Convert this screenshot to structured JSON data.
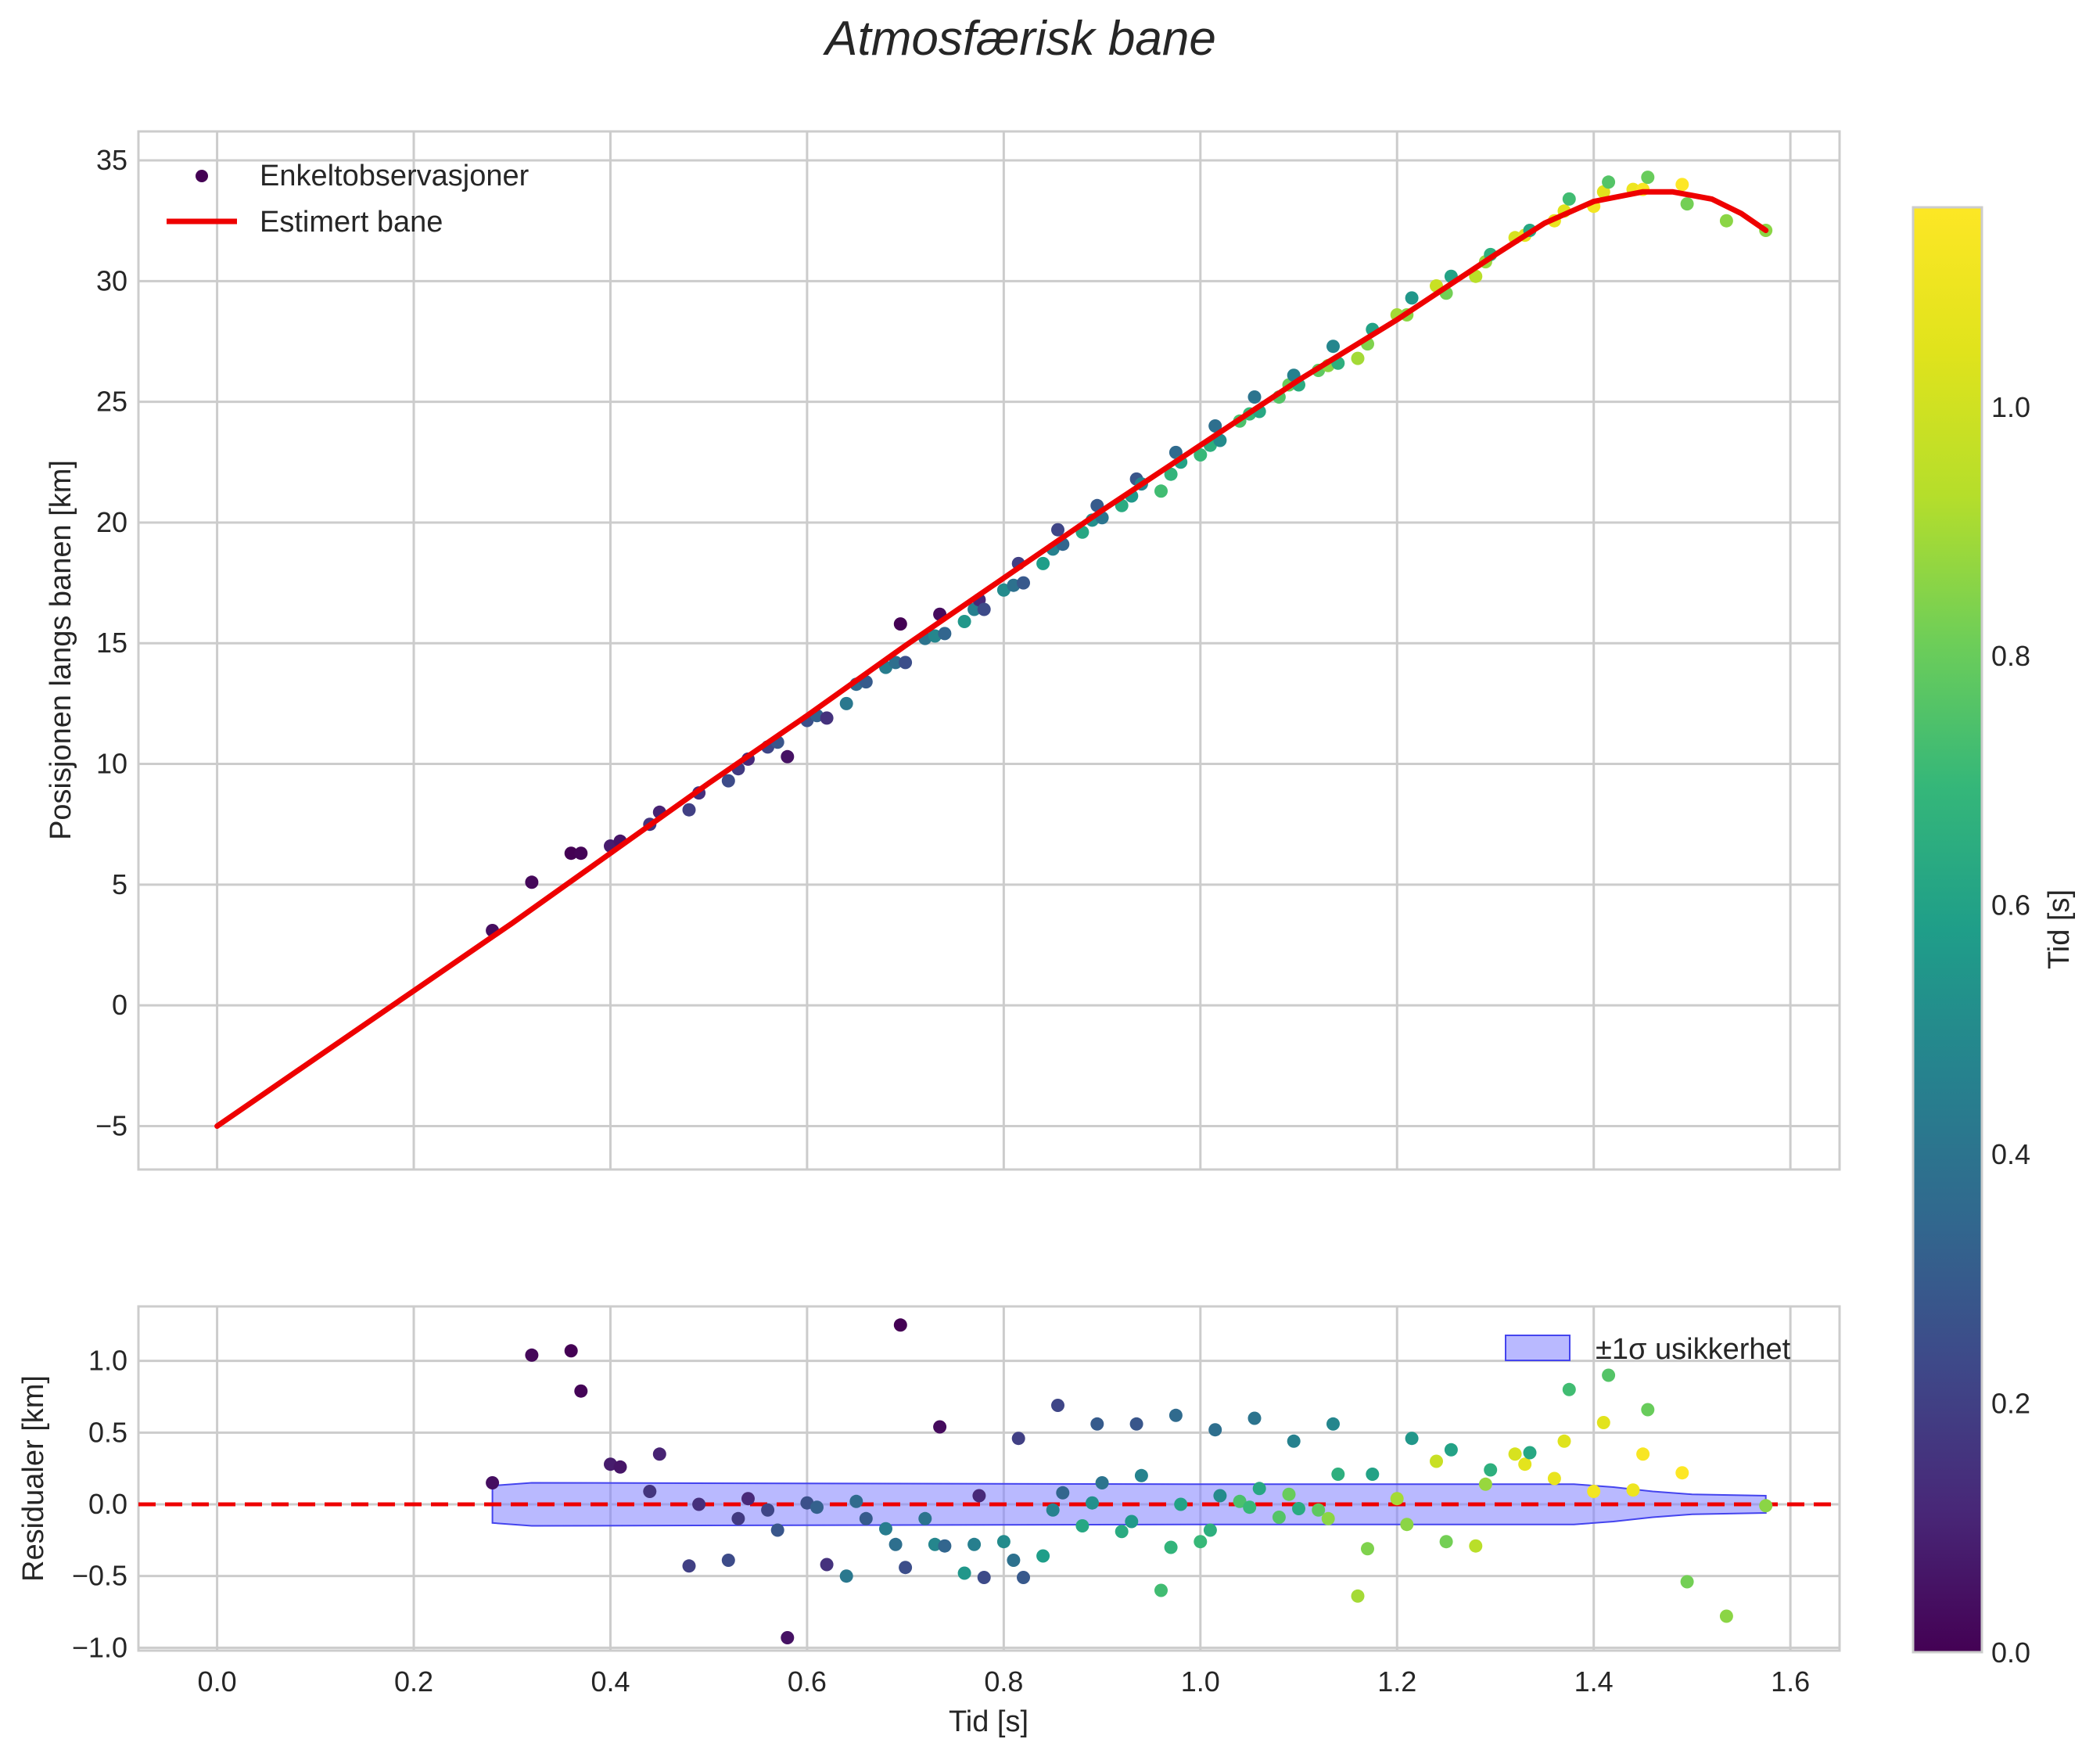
{
  "colors": {
    "fit_line": "#ee0000",
    "zero_line": "#ee0000",
    "band_fill": "#8080ff",
    "band_stroke": "#4444ee",
    "grid": "#cccccc",
    "spine": "#cccccc"
  },
  "chart_data": [
    {
      "type": "scatter",
      "title": "Atmosfærisk bane",
      "xlabel": "",
      "ylabel": "Posisjonen langs banen [km]",
      "xlim": [
        -0.08,
        1.65
      ],
      "ylim": [
        -6.8,
        36.2
      ],
      "xticks": [
        0.0,
        0.2,
        0.4,
        0.6,
        0.8,
        1.0,
        1.2,
        1.4,
        1.6
      ],
      "yticks": [
        -5,
        0,
        5,
        10,
        15,
        20,
        25,
        30,
        35
      ],
      "ytick_labels": [
        "−5",
        "0",
        "5",
        "10",
        "15",
        "20",
        "25",
        "30",
        "35"
      ],
      "grid": true,
      "legend_position": "upper-left",
      "legend": {
        "points_label": "Enkeltobservasjoner",
        "line_label": "Estimert bane"
      },
      "fit_line": {
        "name": "Estimert bane",
        "x": [
          0.0,
          0.1,
          0.2,
          0.3,
          0.4,
          0.5,
          0.6,
          0.7,
          0.8,
          0.9,
          1.0,
          1.1,
          1.2,
          1.3,
          1.35,
          1.4,
          1.45,
          1.48,
          1.52,
          1.55,
          1.575
        ],
        "y": [
          -5.0,
          -2.2,
          0.6,
          3.4,
          6.3,
          9.2,
          12.0,
          14.9,
          17.7,
          20.5,
          23.2,
          25.9,
          28.4,
          31.1,
          32.4,
          33.3,
          33.7,
          33.7,
          33.4,
          32.8,
          32.1
        ]
      },
      "points": {
        "name": "Enkeltobservasjoner",
        "x": [
          0.28,
          0.32,
          0.36,
          0.37,
          0.4,
          0.41,
          0.44,
          0.45,
          0.48,
          0.49,
          0.52,
          0.53,
          0.54,
          0.56,
          0.57,
          0.58,
          0.6,
          0.61,
          0.62,
          0.64,
          0.65,
          0.66,
          0.68,
          0.69,
          0.695,
          0.7,
          0.72,
          0.73,
          0.735,
          0.74,
          0.76,
          0.77,
          0.775,
          0.78,
          0.8,
          0.81,
          0.815,
          0.82,
          0.84,
          0.85,
          0.855,
          0.86,
          0.88,
          0.89,
          0.895,
          0.9,
          0.92,
          0.93,
          0.935,
          0.94,
          0.96,
          0.97,
          0.975,
          0.98,
          1.0,
          1.01,
          1.015,
          1.02,
          1.04,
          1.05,
          1.055,
          1.06,
          1.08,
          1.09,
          1.095,
          1.1,
          1.12,
          1.13,
          1.135,
          1.14,
          1.16,
          1.17,
          1.175,
          1.2,
          1.21,
          1.215,
          1.24,
          1.25,
          1.255,
          1.28,
          1.29,
          1.295,
          1.32,
          1.33,
          1.335,
          1.36,
          1.37,
          1.375,
          1.4,
          1.41,
          1.415,
          1.44,
          1.45,
          1.455,
          1.49,
          1.495,
          1.535,
          1.575
        ],
        "y": [
          3.1,
          5.1,
          6.3,
          6.3,
          6.6,
          6.8,
          7.5,
          8.0,
          8.1,
          8.8,
          9.3,
          9.8,
          10.2,
          10.7,
          10.9,
          10.3,
          11.8,
          12.0,
          11.9,
          12.5,
          13.3,
          13.4,
          14.0,
          14.2,
          15.8,
          14.2,
          15.2,
          15.3,
          16.2,
          15.4,
          15.9,
          16.4,
          16.8,
          16.4,
          17.2,
          17.4,
          18.3,
          17.5,
          18.3,
          18.9,
          19.7,
          19.1,
          19.6,
          20.1,
          20.7,
          20.2,
          20.7,
          21.1,
          21.8,
          21.6,
          21.3,
          22.0,
          22.9,
          22.5,
          22.8,
          23.2,
          24.0,
          23.4,
          24.2,
          24.5,
          25.2,
          24.6,
          25.2,
          25.7,
          26.1,
          25.7,
          26.3,
          26.5,
          27.3,
          26.6,
          26.8,
          27.4,
          28.0,
          28.6,
          28.6,
          29.3,
          29.8,
          29.5,
          30.2,
          30.2,
          30.8,
          31.1,
          31.8,
          31.9,
          32.1,
          32.5,
          32.9,
          33.4,
          33.1,
          33.7,
          34.1,
          33.8,
          33.8,
          34.3,
          34.0,
          33.2,
          32.5,
          32.1
        ],
        "color_values": [
          0.04,
          0.02,
          0.0,
          0.01,
          0.08,
          0.06,
          0.16,
          0.1,
          0.2,
          0.14,
          0.24,
          0.18,
          0.12,
          0.22,
          0.28,
          0.05,
          0.26,
          0.32,
          0.15,
          0.42,
          0.36,
          0.3,
          0.44,
          0.38,
          0.0,
          0.25,
          0.4,
          0.48,
          0.03,
          0.34,
          0.55,
          0.45,
          0.12,
          0.24,
          0.5,
          0.39,
          0.2,
          0.29,
          0.58,
          0.46,
          0.22,
          0.34,
          0.62,
          0.52,
          0.3,
          0.4,
          0.64,
          0.56,
          0.28,
          0.47,
          0.72,
          0.68,
          0.36,
          0.6,
          0.7,
          0.66,
          0.38,
          0.5,
          0.74,
          0.7,
          0.4,
          0.62,
          0.76,
          0.8,
          0.46,
          0.64,
          0.78,
          0.86,
          0.48,
          0.66,
          0.9,
          0.84,
          0.6,
          0.9,
          0.86,
          0.55,
          0.98,
          0.82,
          0.6,
          0.94,
          0.88,
          0.66,
          1.02,
          1.06,
          0.62,
          1.08,
          1.04,
          0.72,
          1.12,
          1.05,
          0.76,
          1.1,
          1.14,
          0.8,
          1.16,
          0.82,
          0.86,
          0.86
        ]
      },
      "colorbar": {
        "label": "Tid [s]",
        "vmin": 0.0,
        "vmax": 1.16,
        "ticks": [
          0.0,
          0.2,
          0.4,
          0.6,
          0.8,
          1.0
        ],
        "tick_labels": [
          "0.0",
          "0.2",
          "0.4",
          "0.6",
          "0.8",
          "1.0"
        ],
        "colormap": "viridis"
      }
    },
    {
      "type": "scatter",
      "xlabel": "Tid [s]",
      "ylabel": "Residualer [km]",
      "xlim": [
        -0.08,
        1.65
      ],
      "ylim": [
        -1.02,
        1.38
      ],
      "xticks": [
        0.0,
        0.2,
        0.4,
        0.6,
        0.8,
        1.0,
        1.2,
        1.4,
        1.6
      ],
      "xtick_labels": [
        "0.0",
        "0.2",
        "0.4",
        "0.6",
        "0.8",
        "1.0",
        "1.2",
        "1.4",
        "1.6"
      ],
      "yticks": [
        -1.0,
        -0.5,
        0.0,
        0.5,
        1.0
      ],
      "ytick_labels": [
        "−1.0",
        "−0.5",
        "0.0",
        "0.5",
        "1.0"
      ],
      "grid": true,
      "legend_position": "upper-right",
      "legend": {
        "band_label": "±1σ usikkerhet"
      },
      "zero_line": 0.0,
      "band": {
        "name": "±1σ usikkerhet",
        "x": [
          0.28,
          0.32,
          1.0,
          1.38,
          1.42,
          1.46,
          1.5,
          1.575
        ],
        "upper": [
          0.13,
          0.15,
          0.14,
          0.14,
          0.12,
          0.09,
          0.07,
          0.06
        ],
        "lower": [
          -0.13,
          -0.15,
          -0.14,
          -0.14,
          -0.12,
          -0.09,
          -0.07,
          -0.06
        ]
      },
      "points": {
        "x": [
          0.28,
          0.32,
          0.36,
          0.37,
          0.4,
          0.41,
          0.44,
          0.45,
          0.48,
          0.49,
          0.52,
          0.53,
          0.54,
          0.56,
          0.57,
          0.58,
          0.6,
          0.61,
          0.62,
          0.64,
          0.65,
          0.66,
          0.68,
          0.69,
          0.695,
          0.7,
          0.72,
          0.73,
          0.735,
          0.74,
          0.76,
          0.77,
          0.775,
          0.78,
          0.8,
          0.81,
          0.815,
          0.82,
          0.84,
          0.85,
          0.855,
          0.86,
          0.88,
          0.89,
          0.895,
          0.9,
          0.92,
          0.93,
          0.935,
          0.94,
          0.96,
          0.97,
          0.975,
          0.98,
          1.0,
          1.01,
          1.015,
          1.02,
          1.04,
          1.05,
          1.055,
          1.06,
          1.08,
          1.09,
          1.095,
          1.1,
          1.12,
          1.13,
          1.135,
          1.14,
          1.16,
          1.17,
          1.175,
          1.2,
          1.21,
          1.215,
          1.24,
          1.25,
          1.255,
          1.28,
          1.29,
          1.295,
          1.32,
          1.33,
          1.335,
          1.36,
          1.37,
          1.375,
          1.4,
          1.41,
          1.415,
          1.44,
          1.45,
          1.455,
          1.49,
          1.495,
          1.535,
          1.575
        ],
        "y": [
          0.15,
          1.04,
          1.07,
          0.79,
          0.28,
          0.26,
          0.09,
          0.35,
          -0.43,
          0.0,
          -0.39,
          -0.1,
          0.04,
          -0.04,
          -0.18,
          -0.93,
          0.01,
          -0.02,
          -0.42,
          -0.5,
          0.02,
          -0.1,
          -0.17,
          -0.28,
          1.25,
          -0.44,
          -0.1,
          -0.28,
          0.54,
          -0.29,
          -0.48,
          -0.28,
          0.06,
          -0.51,
          -0.26,
          -0.39,
          0.46,
          -0.51,
          -0.36,
          -0.04,
          0.69,
          0.08,
          -0.15,
          0.01,
          0.56,
          0.15,
          -0.19,
          -0.12,
          0.56,
          0.2,
          -0.6,
          -0.3,
          0.62,
          0.0,
          -0.26,
          -0.18,
          0.52,
          0.06,
          0.02,
          -0.02,
          0.6,
          0.11,
          -0.09,
          0.07,
          0.44,
          -0.03,
          -0.04,
          -0.1,
          0.56,
          0.21,
          -0.64,
          -0.31,
          0.21,
          0.04,
          -0.14,
          0.46,
          0.3,
          -0.26,
          0.38,
          -0.29,
          0.14,
          0.24,
          0.35,
          0.28,
          0.36,
          0.18,
          0.44,
          0.8,
          0.09,
          0.57,
          0.9,
          0.1,
          0.35,
          0.66,
          0.22,
          -0.54,
          -0.78,
          -0.01
        ],
        "color_values": [
          0.04,
          0.02,
          0.0,
          0.01,
          0.08,
          0.06,
          0.16,
          0.1,
          0.2,
          0.14,
          0.24,
          0.18,
          0.12,
          0.22,
          0.28,
          0.05,
          0.26,
          0.32,
          0.15,
          0.42,
          0.36,
          0.3,
          0.44,
          0.38,
          0.0,
          0.25,
          0.4,
          0.48,
          0.03,
          0.34,
          0.55,
          0.45,
          0.12,
          0.24,
          0.5,
          0.39,
          0.2,
          0.29,
          0.58,
          0.46,
          0.22,
          0.34,
          0.62,
          0.52,
          0.3,
          0.4,
          0.64,
          0.56,
          0.28,
          0.47,
          0.72,
          0.68,
          0.36,
          0.6,
          0.7,
          0.66,
          0.38,
          0.5,
          0.74,
          0.7,
          0.4,
          0.62,
          0.76,
          0.8,
          0.46,
          0.64,
          0.78,
          0.86,
          0.48,
          0.66,
          0.9,
          0.84,
          0.6,
          0.9,
          0.86,
          0.55,
          0.98,
          0.82,
          0.6,
          0.94,
          0.88,
          0.66,
          1.02,
          1.06,
          0.62,
          1.08,
          1.04,
          0.72,
          1.12,
          1.05,
          0.76,
          1.1,
          1.14,
          0.8,
          1.16,
          0.82,
          0.86,
          0.86
        ]
      }
    }
  ]
}
